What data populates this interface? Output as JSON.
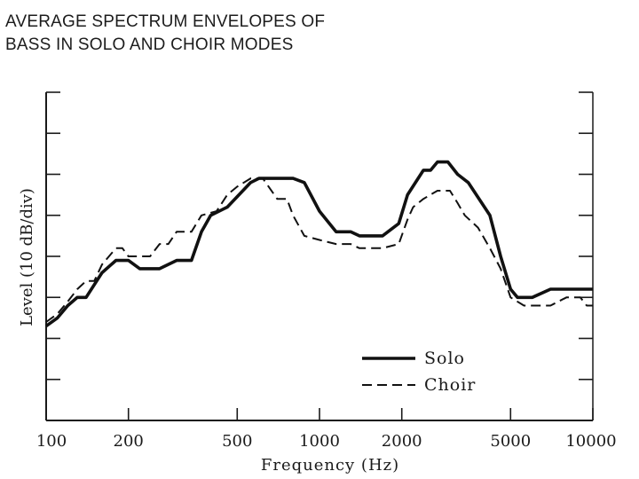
{
  "slide": {
    "title": "AVERAGE SPECTRUM ENVELOPES OF\nBASS IN SOLO AND CHOIR MODES"
  },
  "chart_data": {
    "type": "line",
    "title": "",
    "xlabel": "Frequency (Hz)",
    "ylabel": "Level (10 dB/div)",
    "x_scale": "log",
    "xlim": [
      100,
      10000
    ],
    "ylim": [
      0,
      80
    ],
    "x_ticks": [
      100,
      200,
      500,
      1000,
      2000,
      5000,
      10000
    ],
    "x_tick_labels": [
      "100",
      "200",
      "500",
      "1000",
      "2000",
      "5000",
      "10000"
    ],
    "y_ticks": [
      0,
      10,
      20,
      30,
      40,
      50,
      60,
      70,
      80
    ],
    "grid": false,
    "legend_position": "bottom-right",
    "series": [
      {
        "name": "Solo",
        "style": "solid",
        "color": "#111111",
        "x": [
          100,
          110,
          120,
          130,
          140,
          160,
          180,
          200,
          220,
          240,
          260,
          300,
          340,
          370,
          400,
          460,
          560,
          600,
          700,
          800,
          880,
          1000,
          1150,
          1300,
          1400,
          1700,
          1950,
          2100,
          2400,
          2550,
          2700,
          2950,
          3200,
          3500,
          4200,
          4600,
          5000,
          5300,
          6000,
          7000,
          8000,
          9000,
          10000
        ],
        "y": [
          23,
          25,
          28,
          30,
          30,
          36,
          39,
          39,
          37,
          37,
          37,
          39,
          39,
          46,
          50,
          52,
          58,
          59,
          59,
          59,
          58,
          51,
          46,
          46,
          45,
          45,
          48,
          55,
          61,
          61,
          63,
          63,
          60,
          58,
          50,
          40,
          32,
          30,
          30,
          32,
          32,
          32,
          32
        ]
      },
      {
        "name": "Choir",
        "style": "dashed",
        "color": "#111111",
        "x": [
          100,
          110,
          120,
          130,
          140,
          150,
          160,
          180,
          190,
          200,
          240,
          260,
          280,
          300,
          340,
          370,
          420,
          460,
          500,
          560,
          620,
          700,
          760,
          800,
          880,
          1000,
          1150,
          1300,
          1400,
          1700,
          1950,
          2100,
          2200,
          2400,
          2700,
          3000,
          3200,
          3400,
          3800,
          4200,
          4600,
          5000,
          5600,
          7000,
          8000,
          9000,
          9500,
          10000
        ],
        "y": [
          24,
          26,
          29,
          32,
          34,
          34,
          38,
          42,
          42,
          40,
          40,
          43,
          43,
          46,
          46,
          50,
          51,
          55,
          57,
          59,
          59,
          54,
          54,
          50,
          45,
          44,
          43,
          43,
          42,
          42,
          43,
          49,
          52,
          54,
          56,
          56,
          53,
          50,
          47,
          42,
          37,
          30,
          28,
          28,
          30,
          30,
          28,
          28
        ]
      }
    ],
    "legend": [
      {
        "label": "Solo",
        "style": "solid"
      },
      {
        "label": "Choir",
        "style": "dashed"
      }
    ]
  }
}
